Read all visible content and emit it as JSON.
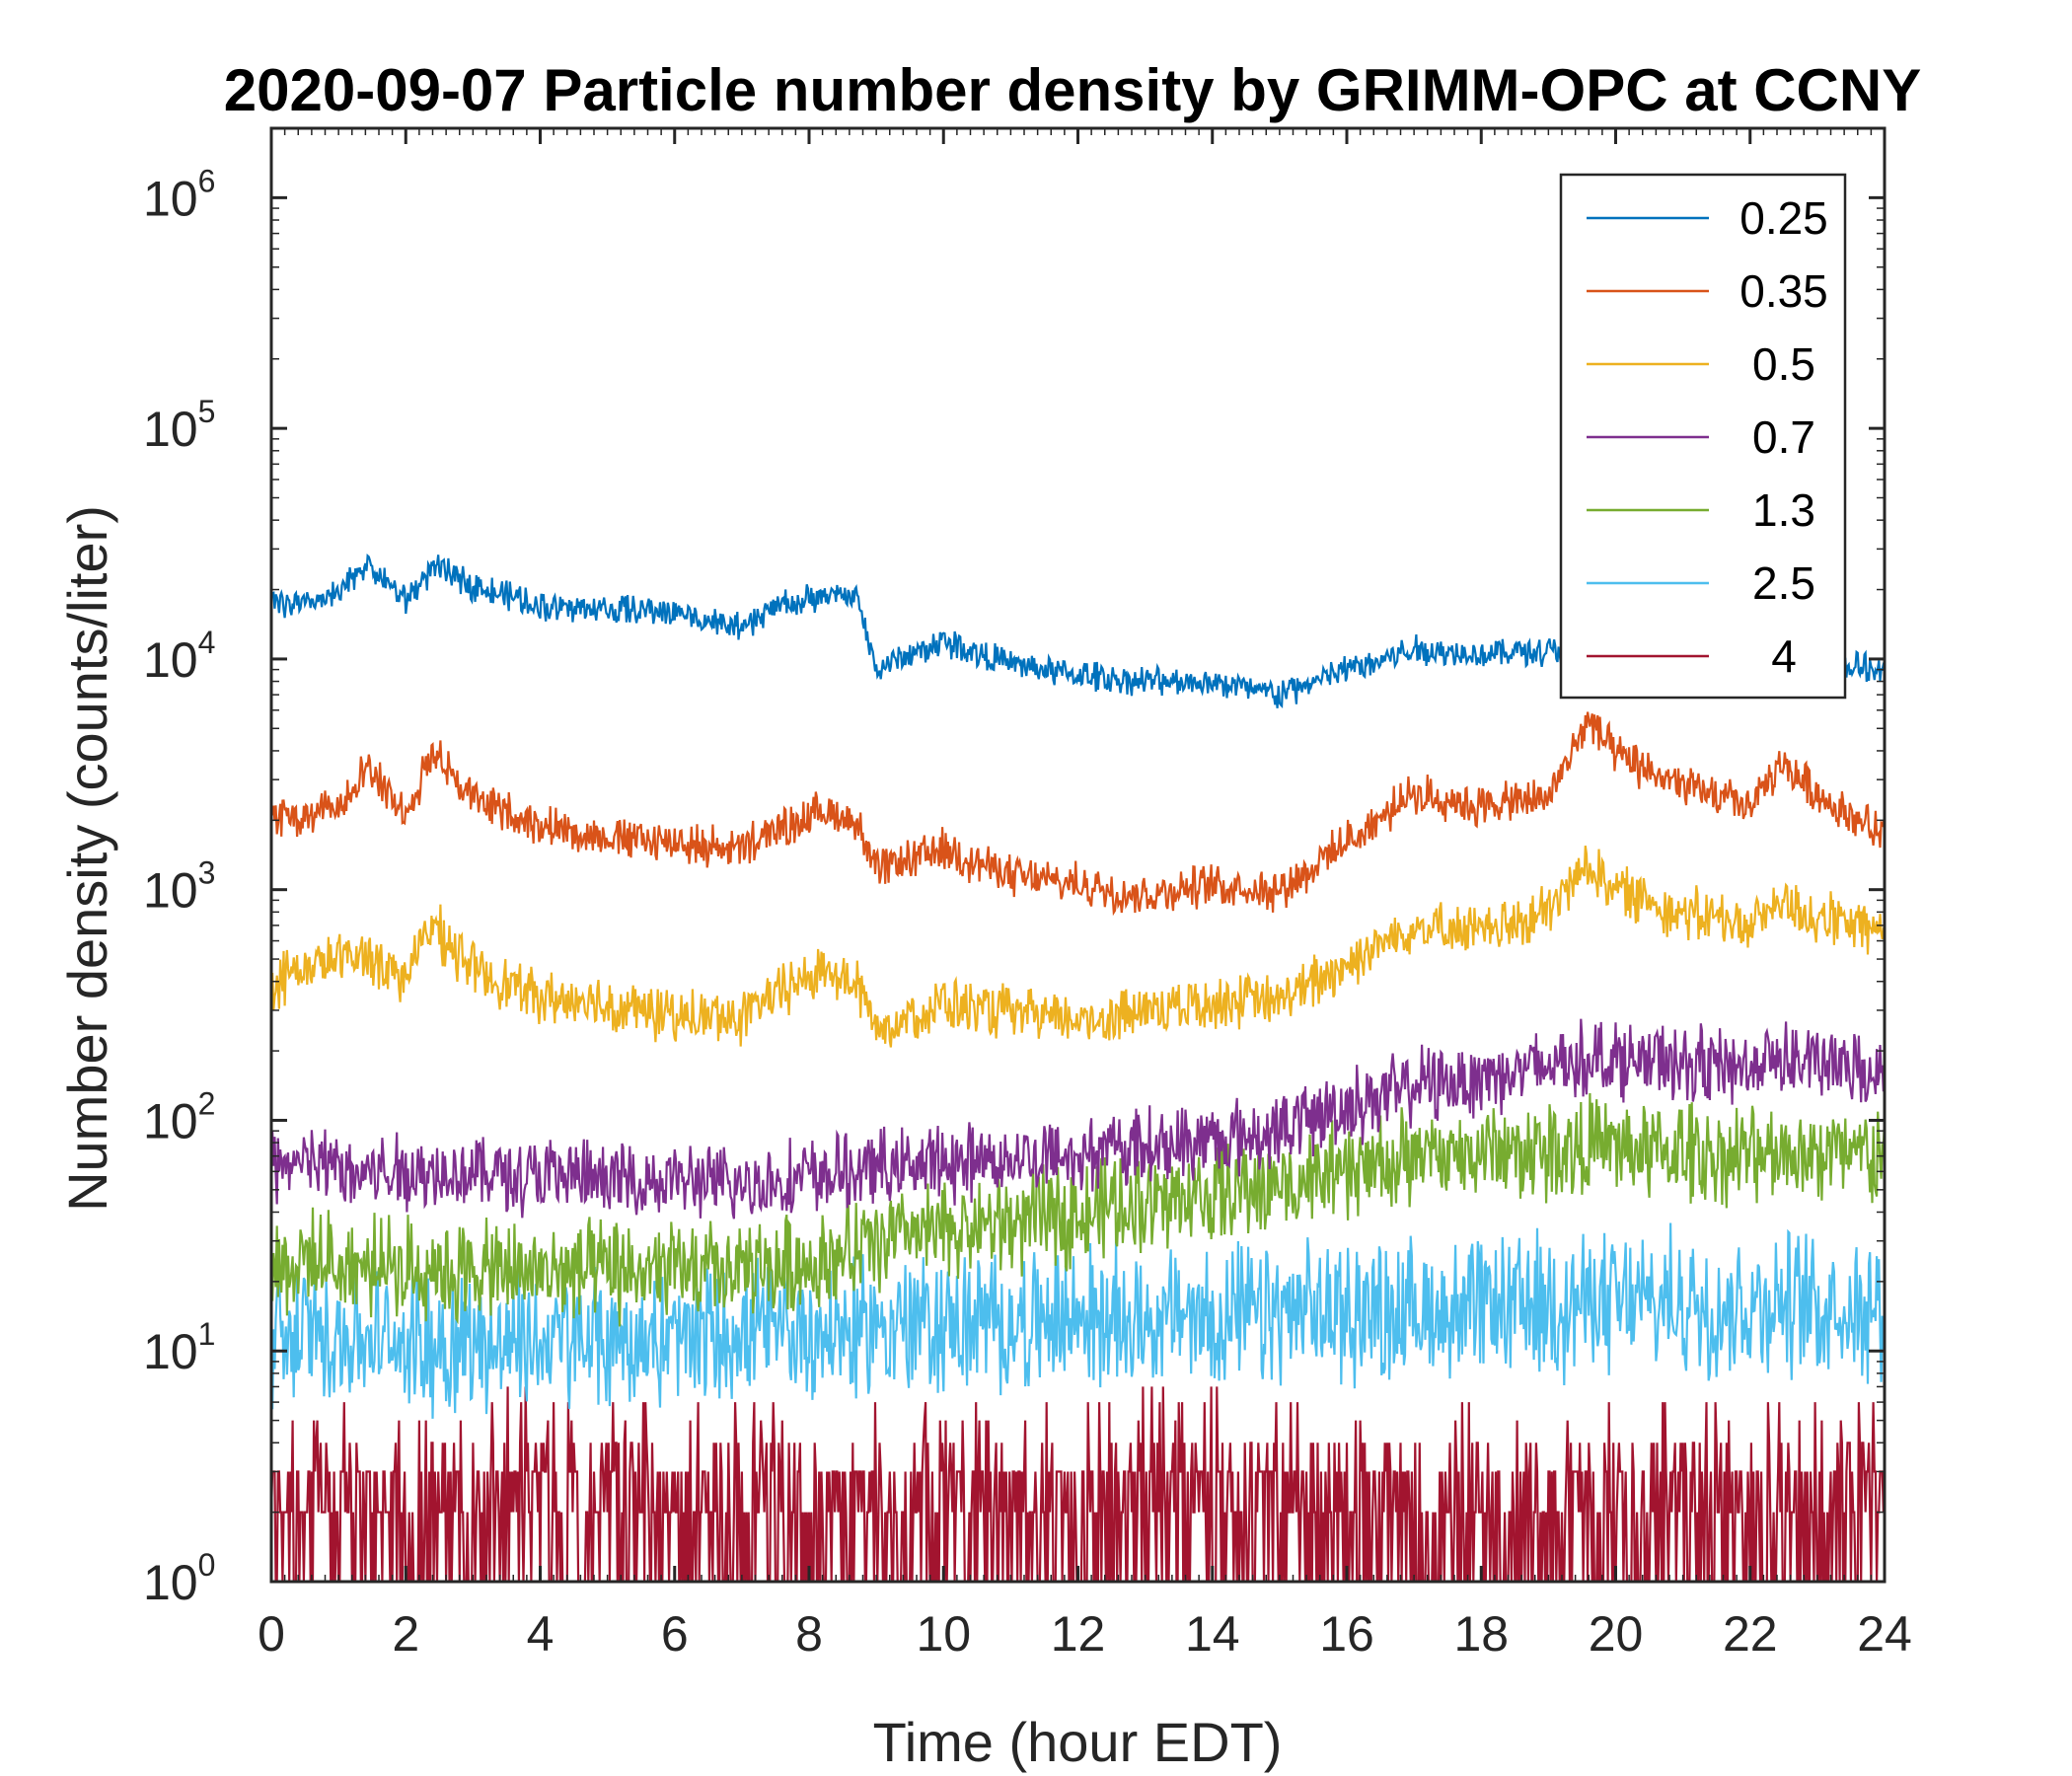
{
  "chart_data": {
    "type": "line",
    "title": "2020-09-07 Particle number density by GRIMM-OPC at CCNY",
    "xlabel": "Time (hour EDT)",
    "ylabel": "Number density (counts/liter)",
    "xlim": [
      0,
      24
    ],
    "ylim": [
      1,
      2000000
    ],
    "yscale": "log",
    "x_ticks": [
      0,
      2,
      4,
      6,
      8,
      10,
      12,
      14,
      16,
      18,
      20,
      22,
      24
    ],
    "y_tick_exponents": [
      0,
      1,
      2,
      3,
      4,
      5,
      6
    ],
    "y_tick_base": "10",
    "legend_position": "top-right",
    "x": [
      0,
      0.5,
      1,
      1.4,
      2,
      2.4,
      3,
      4,
      5,
      6,
      7,
      7.5,
      8.2,
      8.7,
      9,
      10,
      11,
      12,
      13,
      14,
      15,
      16,
      17,
      18,
      19,
      19.6,
      20,
      21,
      22,
      22.5,
      23,
      24
    ],
    "series": [
      {
        "name": "0.25",
        "color": "#0072BD",
        "noise": 0.05,
        "values": [
          18000,
          17000,
          19000,
          26000,
          18000,
          25000,
          21000,
          17000,
          16500,
          16000,
          13500,
          17000,
          18500,
          19000,
          9000,
          12000,
          9500,
          8500,
          8000,
          8000,
          7000,
          9000,
          11000,
          10500,
          11000,
          10000,
          10000,
          9500,
          10000,
          10000,
          9500,
          9000
        ]
      },
      {
        "name": "0.35",
        "color": "#D95319",
        "noise": 0.07,
        "values": [
          2200,
          2000,
          2300,
          3500,
          2100,
          4000,
          2500,
          1900,
          1700,
          1600,
          1500,
          1800,
          2200,
          2000,
          1200,
          1500,
          1150,
          1050,
          950,
          1050,
          1000,
          1600,
          2600,
          2300,
          2500,
          5500,
          3800,
          2800,
          2300,
          3500,
          2600,
          1700
        ]
      },
      {
        "name": "0.5",
        "color": "#EDB120",
        "noise": 0.09,
        "values": [
          400,
          450,
          500,
          520,
          420,
          700,
          450,
          340,
          320,
          280,
          280,
          350,
          450,
          400,
          250,
          320,
          290,
          270,
          300,
          330,
          330,
          480,
          700,
          650,
          800,
          1300,
          1000,
          800,
          700,
          900,
          750,
          650
        ]
      },
      {
        "name": "0.7",
        "color": "#7E2F8E",
        "noise": 0.13,
        "values": [
          65,
          65,
          62,
          60,
          60,
          60,
          60,
          58,
          55,
          55,
          52,
          55,
          58,
          60,
          62,
          65,
          68,
          72,
          78,
          82,
          90,
          115,
          140,
          155,
          170,
          190,
          185,
          175,
          170,
          190,
          175,
          155
        ]
      },
      {
        "name": "1.3",
        "color": "#77AC30",
        "noise": 0.17,
        "values": [
          25,
          24,
          24,
          23,
          23,
          23,
          22,
          22,
          22,
          22,
          22,
          23,
          25,
          27,
          30,
          33,
          36,
          40,
          45,
          48,
          52,
          60,
          68,
          72,
          75,
          78,
          75,
          72,
          70,
          75,
          72,
          70
        ]
      },
      {
        "name": "2.5",
        "color": "#4DBEEE",
        "noise": 0.24,
        "values": [
          12,
          12,
          12,
          11,
          11,
          11,
          11,
          11,
          11,
          11,
          12,
          12,
          12,
          12,
          13,
          13,
          13,
          14,
          14,
          14,
          14,
          15,
          15,
          15,
          16,
          16,
          16,
          16,
          16,
          16,
          16,
          16
        ]
      },
      {
        "name": "4",
        "color": "#A2142F",
        "noise": 0.3,
        "values": [
          2,
          2,
          2,
          2,
          2,
          2,
          2,
          2,
          2,
          2,
          2,
          2,
          2,
          2,
          2,
          2,
          2,
          2,
          2,
          2,
          2,
          2,
          2,
          2,
          2,
          2,
          2,
          2,
          2,
          2,
          2,
          2
        ]
      }
    ]
  }
}
